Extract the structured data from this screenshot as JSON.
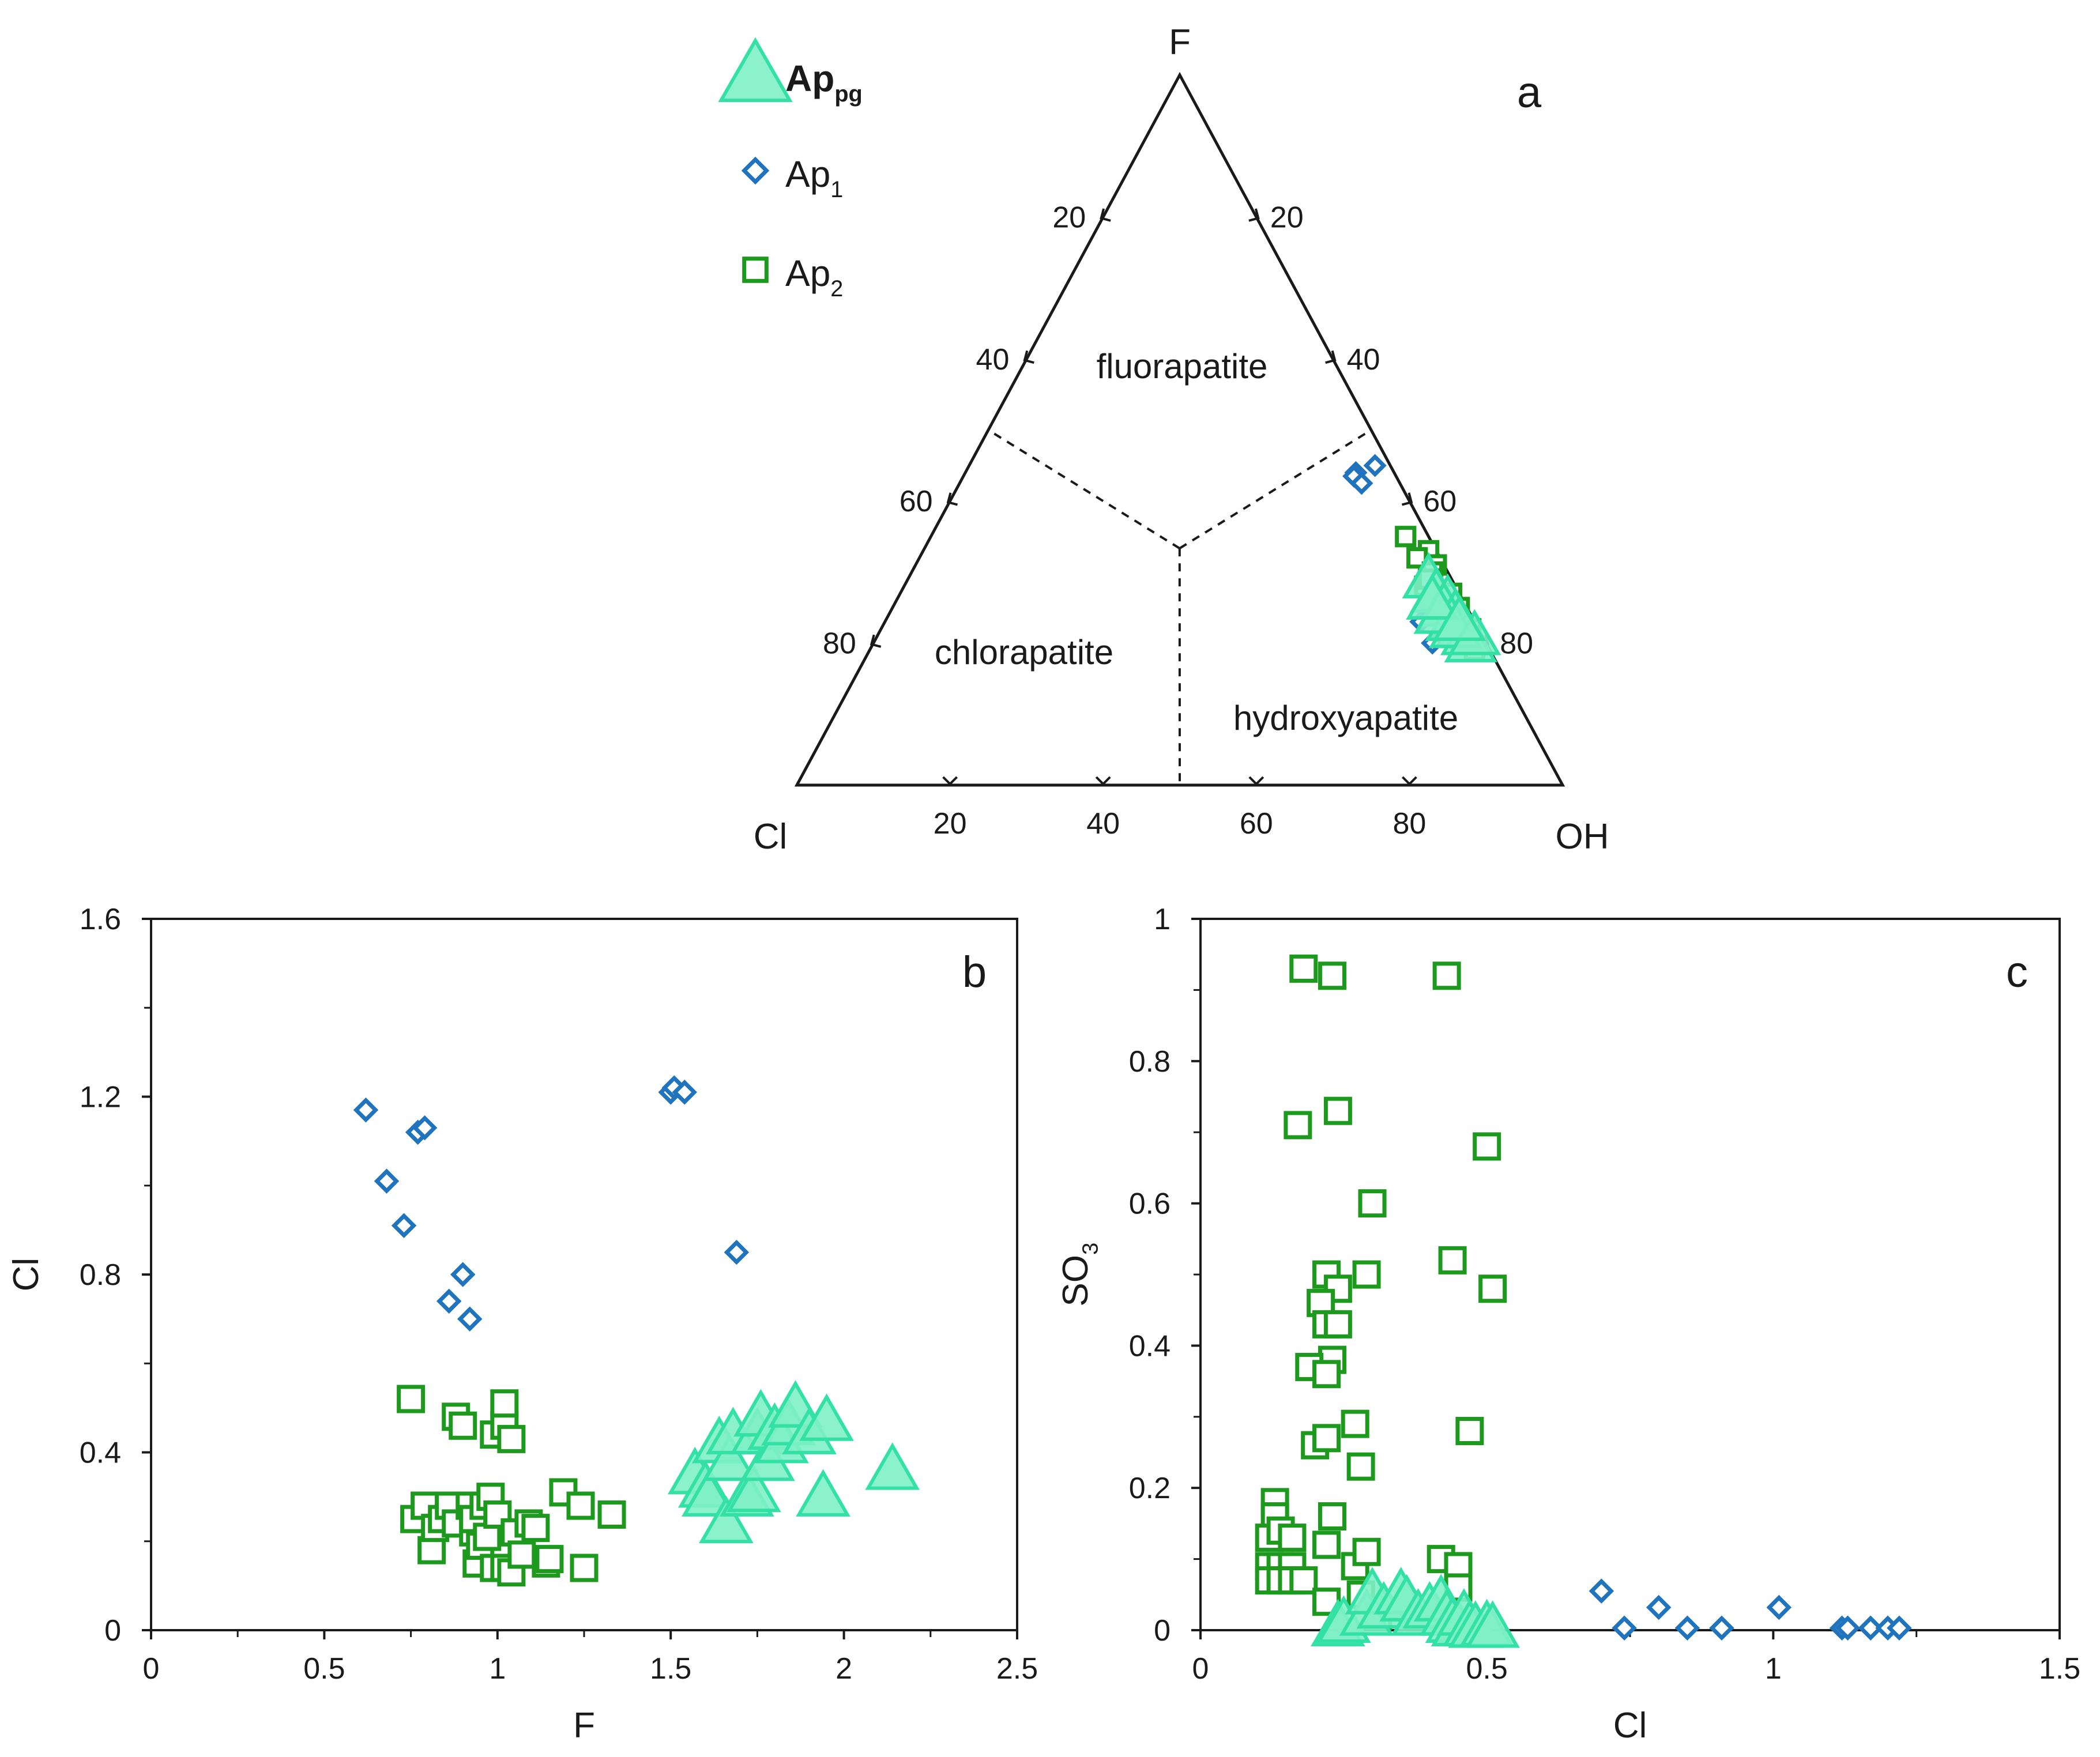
{
  "colors": {
    "ap_pg": "#33e0a6",
    "ap_pg_fill": "#7ff0c8",
    "ap1": "#2074bd",
    "ap2": "#1d9a1d",
    "axis": "#1a1a1a"
  },
  "legend": {
    "items": [
      {
        "key": "ap_pg",
        "label": "Ap",
        "sub": "pg",
        "bold": true,
        "marker": "triangle"
      },
      {
        "key": "ap1",
        "label": "Ap",
        "sub": "1",
        "bold": false,
        "marker": "diamond"
      },
      {
        "key": "ap2",
        "label": "Ap",
        "sub": "2",
        "bold": false,
        "marker": "square"
      }
    ]
  },
  "chart_data": [
    {
      "id": "a",
      "type": "scatter",
      "subtype": "ternary",
      "panel_label": "a",
      "vertices": {
        "top": "F",
        "left": "Cl",
        "right": "OH"
      },
      "edge_ticks": {
        "left": [
          "20",
          "40",
          "60",
          "80"
        ],
        "right": [
          "80",
          "60",
          "40",
          "20"
        ],
        "bottom": [
          "20",
          "40",
          "60",
          "80"
        ]
      },
      "regions": [
        "fluorapatite",
        "chlorapatite",
        "hydroxyapatite"
      ],
      "series": [
        {
          "name": "Ap1",
          "key": "ap1",
          "points": [
            {
              "F": 44,
              "Cl": 5,
              "OH": 51
            },
            {
              "F": 43.5,
              "Cl": 5.5,
              "OH": 51
            },
            {
              "F": 42.5,
              "Cl": 5,
              "OH": 52.5
            },
            {
              "F": 45,
              "Cl": 2,
              "OH": 53
            },
            {
              "F": 23,
              "Cl": 7,
              "OH": 70
            },
            {
              "F": 21,
              "Cl": 5,
              "OH": 74
            },
            {
              "F": 20,
              "Cl": 4,
              "OH": 76
            },
            {
              "F": 21,
              "Cl": 3,
              "OH": 76
            },
            {
              "F": 20,
              "Cl": 7,
              "OH": 73
            },
            {
              "F": 22,
              "Cl": 4,
              "OH": 74
            }
          ]
        },
        {
          "name": "Ap2",
          "key": "ap2",
          "points": [
            {
              "F": 35,
              "Cl": 3,
              "OH": 62
            },
            {
              "F": 33,
              "Cl": 1,
              "OH": 66
            },
            {
              "F": 32,
              "Cl": 3,
              "OH": 65
            },
            {
              "F": 31,
              "Cl": 1,
              "OH": 68
            },
            {
              "F": 30,
              "Cl": 2,
              "OH": 68
            },
            {
              "F": 28,
              "Cl": 4,
              "OH": 68
            },
            {
              "F": 26,
              "Cl": 3,
              "OH": 71
            },
            {
              "F": 25,
              "Cl": 1,
              "OH": 74
            },
            {
              "F": 24,
              "Cl": 5,
              "OH": 71
            },
            {
              "F": 23,
              "Cl": 2,
              "OH": 75
            },
            {
              "F": 22,
              "Cl": 1,
              "OH": 77
            },
            {
              "F": 20,
              "Cl": 2,
              "OH": 78
            },
            {
              "F": 19,
              "Cl": 2,
              "OH": 79
            },
            {
              "F": 27,
              "Cl": 1,
              "OH": 72
            },
            {
              "F": 29,
              "Cl": 3,
              "OH": 68
            },
            {
              "F": 21,
              "Cl": 3,
              "OH": 76
            }
          ]
        },
        {
          "name": "Appg",
          "key": "ap_pg",
          "points": [
            {
              "F": 29,
              "Cl": 3,
              "OH": 68
            },
            {
              "F": 27,
              "Cl": 3,
              "OH": 70
            },
            {
              "F": 26,
              "Cl": 2,
              "OH": 72
            },
            {
              "F": 25,
              "Cl": 3,
              "OH": 72
            },
            {
              "F": 24,
              "Cl": 2,
              "OH": 74
            },
            {
              "F": 23,
              "Cl": 3,
              "OH": 74
            },
            {
              "F": 22,
              "Cl": 2,
              "OH": 76
            },
            {
              "F": 21,
              "Cl": 2,
              "OH": 77
            },
            {
              "F": 20,
              "Cl": 2,
              "OH": 78
            },
            {
              "F": 24,
              "Cl": 4,
              "OH": 72
            },
            {
              "F": 22,
              "Cl": 3,
              "OH": 75
            },
            {
              "F": 26,
              "Cl": 4,
              "OH": 70
            },
            {
              "F": 21,
              "Cl": 1,
              "OH": 78
            },
            {
              "F": 23,
              "Cl": 2,
              "OH": 75
            }
          ]
        }
      ]
    },
    {
      "id": "b",
      "type": "scatter",
      "panel_label": "b",
      "xlabel": "F",
      "ylabel": "Cl",
      "xlim": [
        0,
        2.5
      ],
      "ylim": [
        0,
        1.6
      ],
      "xticks": [
        0,
        0.5,
        1,
        1.5,
        2,
        2.5
      ],
      "xtick_labels": [
        "0",
        "0.5",
        "1",
        "1.5",
        "2",
        "2.5"
      ],
      "yticks": [
        0,
        0.4,
        0.8,
        1.2,
        1.6
      ],
      "ytick_labels": [
        "0",
        "0.4",
        "0.8",
        "1.2",
        "1.6"
      ],
      "series": [
        {
          "name": "Ap1",
          "key": "ap1",
          "points": [
            [
              0.62,
              1.17
            ],
            [
              0.77,
              1.12
            ],
            [
              0.79,
              1.13
            ],
            [
              0.68,
              1.01
            ],
            [
              0.73,
              0.91
            ],
            [
              0.9,
              0.8
            ],
            [
              0.86,
              0.74
            ],
            [
              0.92,
              0.7
            ],
            [
              1.5,
              1.21
            ],
            [
              1.51,
              1.22
            ],
            [
              1.54,
              1.21
            ],
            [
              1.69,
              0.85
            ]
          ]
        },
        {
          "name": "Ap2",
          "key": "ap2",
          "points": [
            [
              0.75,
              0.52
            ],
            [
              0.88,
              0.48
            ],
            [
              0.9,
              0.46
            ],
            [
              0.99,
              0.44
            ],
            [
              1.02,
              0.46
            ],
            [
              1.02,
              0.51
            ],
            [
              1.04,
              0.43
            ],
            [
              0.76,
              0.25
            ],
            [
              0.79,
              0.28
            ],
            [
              0.81,
              0.18
            ],
            [
              0.82,
              0.23
            ],
            [
              0.84,
              0.25
            ],
            [
              0.86,
              0.28
            ],
            [
              0.88,
              0.24
            ],
            [
              0.92,
              0.28
            ],
            [
              0.93,
              0.22
            ],
            [
              0.93,
              0.25
            ],
            [
              0.94,
              0.15
            ],
            [
              0.95,
              0.19
            ],
            [
              0.96,
              0.28
            ],
            [
              0.97,
              0.21
            ],
            [
              0.98,
              0.3
            ],
            [
              0.99,
              0.14
            ],
            [
              1.0,
              0.26
            ],
            [
              1.02,
              0.14
            ],
            [
              1.04,
              0.13
            ],
            [
              1.05,
              0.22
            ],
            [
              1.07,
              0.17
            ],
            [
              1.09,
              0.24
            ],
            [
              1.11,
              0.23
            ],
            [
              1.14,
              0.15
            ],
            [
              1.15,
              0.16
            ],
            [
              1.19,
              0.31
            ],
            [
              1.24,
              0.28
            ],
            [
              1.25,
              0.14
            ],
            [
              1.33,
              0.26
            ]
          ]
        },
        {
          "name": "Appg",
          "key": "ap_pg",
          "points": [
            [
              1.57,
              0.35
            ],
            [
              1.6,
              0.32
            ],
            [
              1.61,
              0.3
            ],
            [
              1.64,
              0.42
            ],
            [
              1.66,
              0.24
            ],
            [
              1.67,
              0.38
            ],
            [
              1.68,
              0.44
            ],
            [
              1.72,
              0.3
            ],
            [
              1.74,
              0.31
            ],
            [
              1.75,
              0.44
            ],
            [
              1.76,
              0.48
            ],
            [
              1.78,
              0.38
            ],
            [
              1.8,
              0.45
            ],
            [
              1.82,
              0.42
            ],
            [
              1.84,
              0.46
            ],
            [
              1.86,
              0.5
            ],
            [
              1.9,
              0.44
            ],
            [
              1.94,
              0.3
            ],
            [
              1.95,
              0.47
            ],
            [
              2.14,
              0.36
            ]
          ]
        }
      ]
    },
    {
      "id": "c",
      "type": "scatter",
      "panel_label": "c",
      "xlabel": "Cl",
      "ylabel": "SO",
      "ylabel_sub": "3",
      "xlim": [
        0,
        1.5
      ],
      "ylim": [
        0,
        1
      ],
      "xticks": [
        0,
        0.5,
        1,
        1.5
      ],
      "xtick_labels": [
        "0",
        "0.5",
        "1",
        "1.5"
      ],
      "yticks": [
        0,
        0.2,
        0.4,
        0.6,
        0.8,
        1
      ],
      "ytick_labels": [
        "0",
        "0.2",
        "0.4",
        "0.6",
        "0.8",
        "1"
      ],
      "series": [
        {
          "name": "Ap1",
          "key": "ap1",
          "points": [
            [
              0.7,
              0.055
            ],
            [
              0.74,
              0.003
            ],
            [
              0.8,
              0.032
            ],
            [
              0.85,
              0.003
            ],
            [
              0.91,
              0.003
            ],
            [
              1.01,
              0.032
            ],
            [
              1.12,
              0.003
            ],
            [
              1.13,
              0.003
            ],
            [
              1.17,
              0.003
            ],
            [
              1.2,
              0.003
            ],
            [
              1.22,
              0.003
            ]
          ]
        },
        {
          "name": "Ap2",
          "key": "ap2",
          "points": [
            [
              0.18,
              0.93
            ],
            [
              0.23,
              0.92
            ],
            [
              0.43,
              0.92
            ],
            [
              0.17,
              0.71
            ],
            [
              0.24,
              0.73
            ],
            [
              0.5,
              0.68
            ],
            [
              0.3,
              0.6
            ],
            [
              0.29,
              0.5
            ],
            [
              0.44,
              0.52
            ],
            [
              0.51,
              0.48
            ],
            [
              0.22,
              0.5
            ],
            [
              0.24,
              0.48
            ],
            [
              0.21,
              0.46
            ],
            [
              0.22,
              0.43
            ],
            [
              0.24,
              0.43
            ],
            [
              0.23,
              0.38
            ],
            [
              0.19,
              0.37
            ],
            [
              0.22,
              0.36
            ],
            [
              0.27,
              0.29
            ],
            [
              0.47,
              0.28
            ],
            [
              0.2,
              0.26
            ],
            [
              0.22,
              0.27
            ],
            [
              0.28,
              0.23
            ],
            [
              0.13,
              0.18
            ],
            [
              0.13,
              0.16
            ],
            [
              0.12,
              0.13
            ],
            [
              0.14,
              0.14
            ],
            [
              0.16,
              0.13
            ],
            [
              0.23,
              0.16
            ],
            [
              0.22,
              0.12
            ],
            [
              0.12,
              0.09
            ],
            [
              0.14,
              0.09
            ],
            [
              0.16,
              0.09
            ],
            [
              0.27,
              0.09
            ],
            [
              0.29,
              0.11
            ],
            [
              0.12,
              0.07
            ],
            [
              0.14,
              0.07
            ],
            [
              0.16,
              0.07
            ],
            [
              0.18,
              0.07
            ],
            [
              0.42,
              0.1
            ],
            [
              0.45,
              0.09
            ],
            [
              0.45,
              0.06
            ],
            [
              0.22,
              0.04
            ],
            [
              0.28,
              0.05
            ],
            [
              0.31,
              0.02
            ]
          ]
        },
        {
          "name": "Appg",
          "key": "ap_pg",
          "points": [
            [
              0.24,
              0.005
            ],
            [
              0.25,
              0.01
            ],
            [
              0.29,
              0.02
            ],
            [
              0.3,
              0.05
            ],
            [
              0.32,
              0.03
            ],
            [
              0.35,
              0.05
            ],
            [
              0.36,
              0.04
            ],
            [
              0.38,
              0.02
            ],
            [
              0.4,
              0.03
            ],
            [
              0.42,
              0.04
            ],
            [
              0.43,
              0.02
            ],
            [
              0.44,
              0.01
            ],
            [
              0.45,
              0.005
            ],
            [
              0.46,
              0.02
            ],
            [
              0.47,
              0.005
            ],
            [
              0.48,
              0.003
            ],
            [
              0.5,
              0.005
            ],
            [
              0.51,
              0.003
            ]
          ]
        }
      ]
    }
  ]
}
